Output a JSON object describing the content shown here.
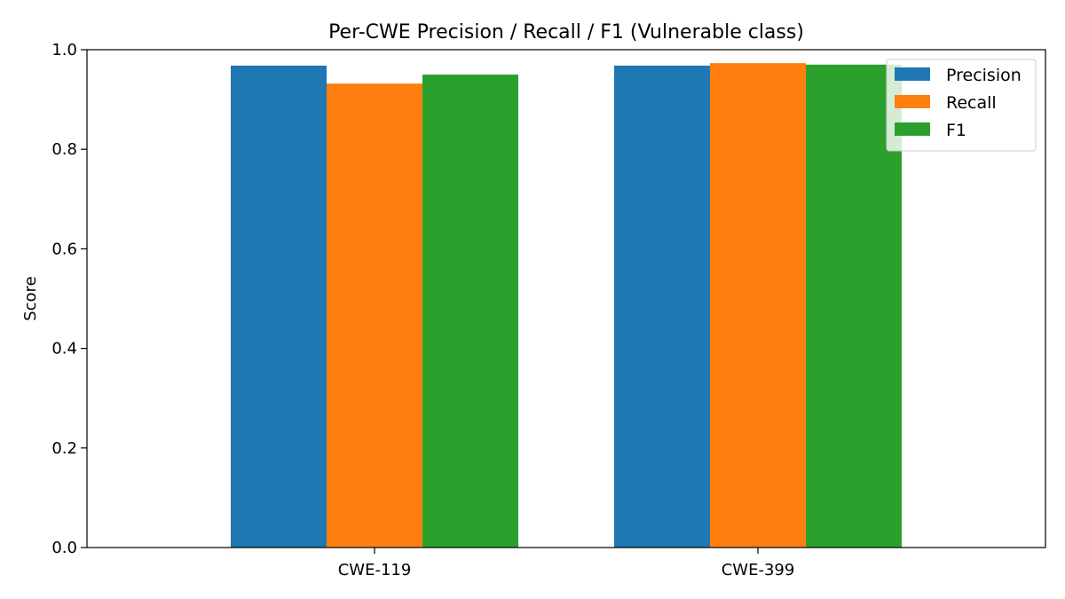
{
  "chart_data": {
    "type": "bar",
    "title": "Per-CWE Precision / Recall / F1 (Vulnerable class)",
    "xlabel": "",
    "ylabel": "Score",
    "categories": [
      "CWE-119",
      "CWE-399"
    ],
    "series": [
      {
        "name": "Precision",
        "color": "#1f77b4",
        "values": [
          0.968,
          0.968
        ]
      },
      {
        "name": "Recall",
        "color": "#ff7f0e",
        "values": [
          0.932,
          0.973
        ]
      },
      {
        "name": "F1",
        "color": "#2ca02c",
        "values": [
          0.95,
          0.97
        ]
      }
    ],
    "ylim": [
      0,
      1.0
    ],
    "yticks": [
      "0.0",
      "0.2",
      "0.4",
      "0.6",
      "0.8",
      "1.0"
    ],
    "grid": false,
    "legend_position": "top-right"
  }
}
